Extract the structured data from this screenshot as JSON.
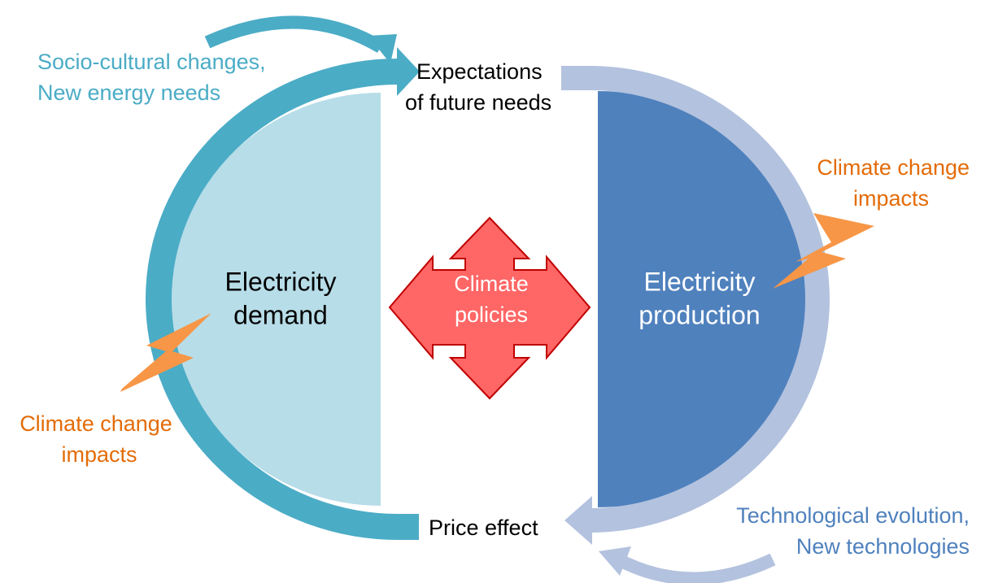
{
  "nodes": [
    {
      "lines": [
        "Socio-cultural changes,",
        "New energy needs"
      ]
    },
    {
      "lines": [
        "Expectations",
        "of future needs"
      ]
    },
    {
      "lines": [
        "Climate change",
        "impacts"
      ]
    },
    {
      "lines": [
        "Electricity",
        "demand"
      ]
    },
    {
      "lines": [
        "Climate",
        "policies"
      ]
    },
    {
      "lines": [
        "Electricity",
        "production"
      ]
    },
    {
      "lines": [
        "Climate change",
        "impacts"
      ]
    },
    {
      "lines": [
        "Price effect"
      ]
    },
    {
      "lines": [
        "Technological evolution,",
        "New technologies"
      ]
    }
  ]
}
